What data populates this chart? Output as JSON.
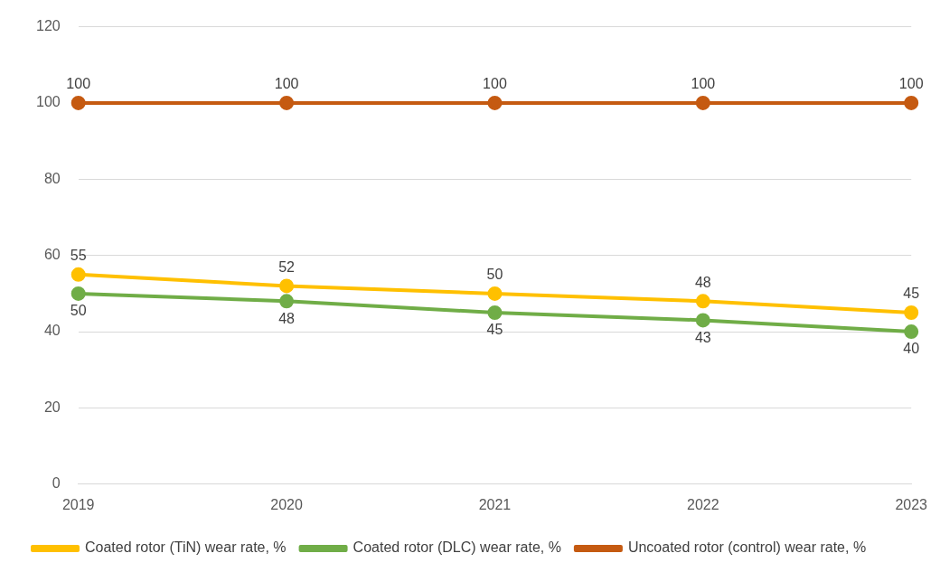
{
  "chart_data": {
    "type": "line",
    "categories": [
      "2019",
      "2020",
      "2021",
      "2022",
      "2023"
    ],
    "series": [
      {
        "name": "Coated rotor (TiN) wear rate, %",
        "color": "#ffc000",
        "values": [
          55,
          52,
          50,
          48,
          45
        ]
      },
      {
        "name": "Coated rotor (DLC) wear rate, %",
        "color": "#70ad47",
        "values": [
          50,
          48,
          45,
          43,
          40
        ]
      },
      {
        "name": "Uncoated rotor (control) wear rate, %",
        "color": "#c55a11",
        "values": [
          100,
          100,
          100,
          100,
          100
        ]
      }
    ],
    "ylim": [
      0,
      120
    ],
    "yticks": [
      0,
      20,
      40,
      60,
      80,
      100,
      120
    ],
    "grid": "y",
    "legend": "bottom",
    "marker": "circle",
    "line_style": "solid",
    "data_labels": true
  }
}
